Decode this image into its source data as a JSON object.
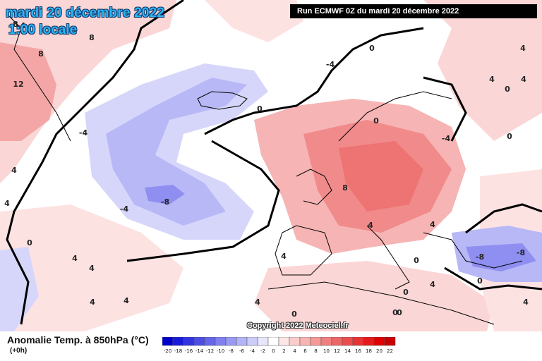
{
  "header": {
    "date_title": "mardi 20 décembre 2022",
    "time_title": "1:00 locale",
    "run_info": "Run ECMWF 0Z du mardi 20 décembre 2022"
  },
  "copyright": "Copyright 2022 Meteociel.fr",
  "legend": {
    "variable": "Anomalie Temp. à 850hPa (°C)",
    "lead": "(+0h)",
    "scale_values": [
      -20,
      -18,
      -16,
      -14,
      -12,
      -10,
      -8,
      -6,
      -4,
      -2,
      0,
      2,
      4,
      6,
      8,
      10,
      12,
      14,
      16,
      18,
      20,
      22
    ],
    "scale_labels": [
      "-20",
      "-18",
      "-16",
      "-14",
      "-12",
      "-10",
      "-8",
      "-6",
      "-4",
      "-2",
      "0",
      "2",
      "4",
      "6",
      "8",
      "10",
      "12",
      "14",
      "16",
      "18",
      "20",
      "22"
    ],
    "scale_colors": [
      "#0000cc",
      "#1a1ad9",
      "#3333e0",
      "#4d4de6",
      "#6666eb",
      "#7f7fef",
      "#9999f3",
      "#b3b3f7",
      "#ccccfa",
      "#e6e6fd",
      "#ffffff",
      "#fde6e6",
      "#fbcccc",
      "#f8b3b3",
      "#f59999",
      "#f27f7f",
      "#ee6666",
      "#eb4d4d",
      "#e83333",
      "#e51a1a",
      "#e00000",
      "#c80000"
    ]
  },
  "contour_labels": [
    {
      "text": "8"
    },
    {
      "text": "8"
    },
    {
      "text": "12"
    },
    {
      "text": "8"
    },
    {
      "text": "4"
    },
    {
      "text": "0"
    },
    {
      "text": "-4"
    },
    {
      "text": "-4"
    },
    {
      "text": "0"
    },
    {
      "text": "-8"
    },
    {
      "text": "-4"
    },
    {
      "text": "0"
    },
    {
      "text": "4"
    },
    {
      "text": "4"
    },
    {
      "text": "0"
    },
    {
      "text": "-4"
    },
    {
      "text": "0"
    },
    {
      "text": "8"
    },
    {
      "text": "4"
    },
    {
      "text": "4"
    },
    {
      "text": "4"
    },
    {
      "text": "0"
    },
    {
      "text": "0"
    },
    {
      "text": "4"
    },
    {
      "text": "0"
    },
    {
      "text": "0"
    },
    {
      "text": "-8"
    },
    {
      "text": "-8"
    },
    {
      "text": "4"
    },
    {
      "text": "4"
    },
    {
      "text": "4"
    },
    {
      "text": "4"
    },
    {
      "text": "4"
    },
    {
      "text": "4"
    },
    {
      "text": "0"
    },
    {
      "text": "4"
    },
    {
      "text": "0"
    },
    {
      "text": "0"
    },
    {
      "text": "4"
    },
    {
      "text": "-4"
    }
  ]
}
